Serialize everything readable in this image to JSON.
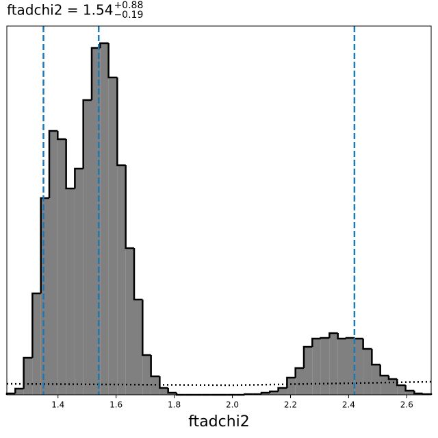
{
  "chart_data": {
    "type": "histogram",
    "title": "ftadchi2 = 1.54",
    "title_sup": "+0.88",
    "title_sub": "−0.19",
    "x_label": "ftadchi2",
    "bins": [
      1.224,
      1.253,
      1.282,
      1.312,
      1.341,
      1.37,
      1.399,
      1.428,
      1.458,
      1.487,
      1.516,
      1.545,
      1.574,
      1.604,
      1.633,
      1.662,
      1.691,
      1.72,
      1.75,
      1.779,
      1.808,
      1.837,
      1.866,
      1.896,
      1.925,
      1.954,
      1.983,
      2.012,
      2.042,
      2.071,
      2.1,
      2.129,
      2.158,
      2.188,
      2.217,
      2.246,
      2.275,
      2.304,
      2.334,
      2.363,
      2.392,
      2.421,
      2.45,
      2.48,
      2.509,
      2.538,
      2.567,
      2.596,
      2.626,
      2.655,
      2.684
    ],
    "values": [
      2,
      9,
      54,
      148,
      287,
      385,
      373,
      301,
      330,
      430,
      506,
      513,
      463,
      335,
      214,
      139,
      58,
      27,
      10,
      3,
      0,
      0,
      0,
      0,
      0,
      0,
      0,
      0,
      1,
      1,
      3,
      5,
      10,
      25,
      39,
      70,
      82,
      83,
      90,
      82,
      83,
      82,
      67,
      44,
      28,
      23,
      14,
      6,
      2,
      1
    ],
    "color": "#808080",
    "quantiles": [
      1.35,
      1.54,
      2.42
    ],
    "quantile_color": "#1f77b4",
    "prior": {
      "x": [
        1.224,
        2.0,
        2.684
      ],
      "values": [
        16,
        14,
        19
      ]
    },
    "xlim": [
      1.224,
      2.684
    ],
    "ylim": [
      0,
      538
    ],
    "xticks": [
      1.4,
      1.6,
      1.8,
      {
        "value": 2,
        "label": "2.0"
      },
      2.2,
      2.4,
      2.6
    ]
  }
}
